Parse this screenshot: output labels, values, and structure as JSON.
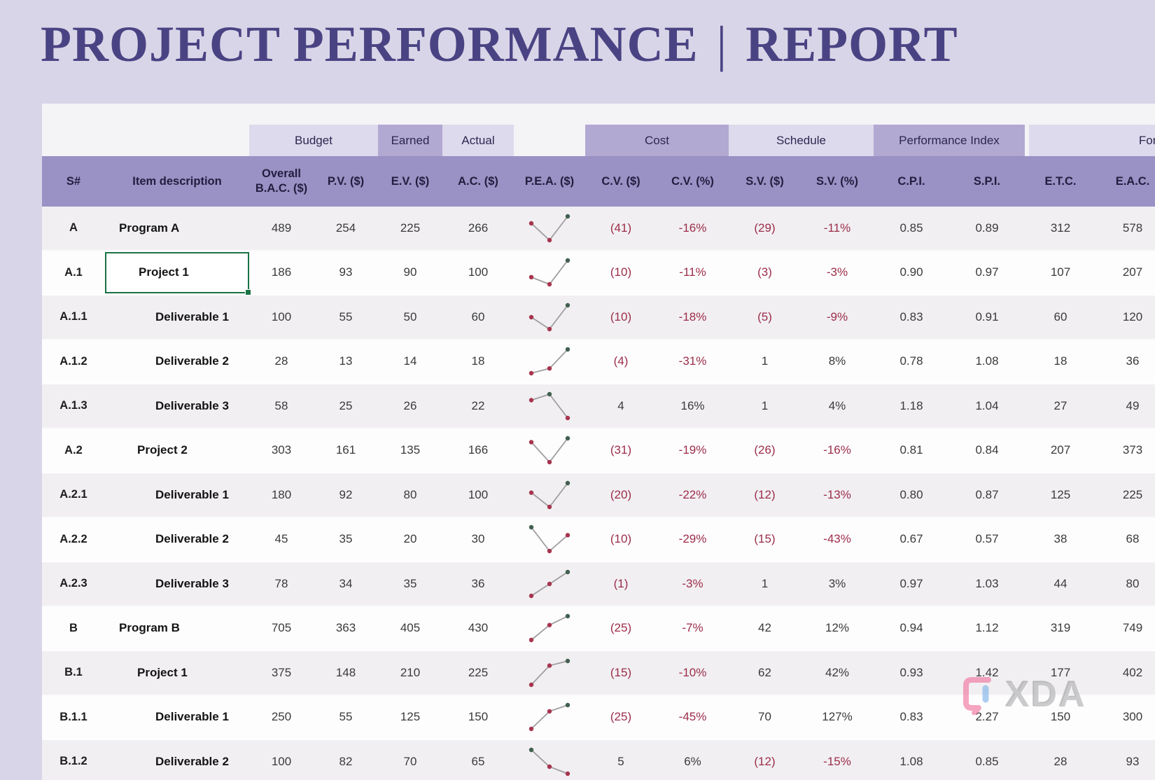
{
  "title": {
    "left": "PROJECT PERFORMANCE",
    "separator": "|",
    "right": "REPORT"
  },
  "colors": {
    "page_background": "#d9d5e8",
    "title_text": "#4a4383",
    "header_band": "#9a91c4",
    "group_tab_light": "#dedaed",
    "group_tab_dark": "#b2a9d2",
    "row_stripe_gray": "#f1eff2",
    "row_stripe_white": "#fdfdfe",
    "negative_value": "#9c2d49",
    "selection_border": "#1b7245",
    "spark_line": "#a09da0",
    "spark_marker": "#a7344e",
    "spark_marker_high": "#41604f",
    "watermark_pink": "#ef6b96",
    "watermark_blue": "#7fb3e8"
  },
  "table": {
    "groups": {
      "budget": "Budget",
      "earned": "Earned",
      "actual": "Actual",
      "cost": "Cost",
      "schedule": "Schedule",
      "performance_index": "Performance Index",
      "forecast": "Forecast"
    },
    "columns": [
      "S#",
      "Item description",
      "Overall B.A.C. ($)",
      "P.V. ($)",
      "E.V. ($)",
      "A.C. ($)",
      "P.E.A. ($)",
      "C.V. ($)",
      "C.V. (%)",
      "S.V. ($)",
      "S.V. (%)",
      "C.P.I.",
      "S.P.I.",
      "E.T.C.",
      "E.A.C."
    ],
    "rows": [
      {
        "sn": "A",
        "item": "Program A",
        "level": 0,
        "bac": "489",
        "pv": "254",
        "ev": "225",
        "ac": "266",
        "cv_d": "(41)",
        "cv_p": "-16%",
        "sv_d": "(29)",
        "sv_p": "-11%",
        "cpi": "0.85",
        "spi": "0.89",
        "etc": "312",
        "eac": "578"
      },
      {
        "sn": "A.1",
        "item": "Project 1",
        "level": 1,
        "selected": true,
        "bac": "186",
        "pv": "93",
        "ev": "90",
        "ac": "100",
        "cv_d": "(10)",
        "cv_p": "-11%",
        "sv_d": "(3)",
        "sv_p": "-3%",
        "cpi": "0.90",
        "spi": "0.97",
        "etc": "107",
        "eac": "207"
      },
      {
        "sn": "A.1.1",
        "item": "Deliverable 1",
        "level": 2,
        "bac": "100",
        "pv": "55",
        "ev": "50",
        "ac": "60",
        "cv_d": "(10)",
        "cv_p": "-18%",
        "sv_d": "(5)",
        "sv_p": "-9%",
        "cpi": "0.83",
        "spi": "0.91",
        "etc": "60",
        "eac": "120"
      },
      {
        "sn": "A.1.2",
        "item": "Deliverable 2",
        "level": 2,
        "bac": "28",
        "pv": "13",
        "ev": "14",
        "ac": "18",
        "cv_d": "(4)",
        "cv_p": "-31%",
        "sv_d": "1",
        "sv_p": "8%",
        "cpi": "0.78",
        "spi": "1.08",
        "etc": "18",
        "eac": "36"
      },
      {
        "sn": "A.1.3",
        "item": "Deliverable 3",
        "level": 2,
        "bac": "58",
        "pv": "25",
        "ev": "26",
        "ac": "22",
        "cv_d": "4",
        "cv_p": "16%",
        "sv_d": "1",
        "sv_p": "4%",
        "cpi": "1.18",
        "spi": "1.04",
        "etc": "27",
        "eac": "49"
      },
      {
        "sn": "A.2",
        "item": "Project 2",
        "level": 1,
        "bac": "303",
        "pv": "161",
        "ev": "135",
        "ac": "166",
        "cv_d": "(31)",
        "cv_p": "-19%",
        "sv_d": "(26)",
        "sv_p": "-16%",
        "cpi": "0.81",
        "spi": "0.84",
        "etc": "207",
        "eac": "373"
      },
      {
        "sn": "A.2.1",
        "item": "Deliverable 1",
        "level": 2,
        "bac": "180",
        "pv": "92",
        "ev": "80",
        "ac": "100",
        "cv_d": "(20)",
        "cv_p": "-22%",
        "sv_d": "(12)",
        "sv_p": "-13%",
        "cpi": "0.80",
        "spi": "0.87",
        "etc": "125",
        "eac": "225"
      },
      {
        "sn": "A.2.2",
        "item": "Deliverable 2",
        "level": 2,
        "bac": "45",
        "pv": "35",
        "ev": "20",
        "ac": "30",
        "cv_d": "(10)",
        "cv_p": "-29%",
        "sv_d": "(15)",
        "sv_p": "-43%",
        "cpi": "0.67",
        "spi": "0.57",
        "etc": "38",
        "eac": "68"
      },
      {
        "sn": "A.2.3",
        "item": "Deliverable 3",
        "level": 2,
        "bac": "78",
        "pv": "34",
        "ev": "35",
        "ac": "36",
        "cv_d": "(1)",
        "cv_p": "-3%",
        "sv_d": "1",
        "sv_p": "3%",
        "cpi": "0.97",
        "spi": "1.03",
        "etc": "44",
        "eac": "80"
      },
      {
        "sn": "B",
        "item": "Program B",
        "level": 0,
        "bac": "705",
        "pv": "363",
        "ev": "405",
        "ac": "430",
        "cv_d": "(25)",
        "cv_p": "-7%",
        "sv_d": "42",
        "sv_p": "12%",
        "cpi": "0.94",
        "spi": "1.12",
        "etc": "319",
        "eac": "749"
      },
      {
        "sn": "B.1",
        "item": "Project 1",
        "level": 1,
        "bac": "375",
        "pv": "148",
        "ev": "210",
        "ac": "225",
        "cv_d": "(15)",
        "cv_p": "-10%",
        "sv_d": "62",
        "sv_p": "42%",
        "cpi": "0.93",
        "spi": "1.42",
        "etc": "177",
        "eac": "402"
      },
      {
        "sn": "B.1.1",
        "item": "Deliverable 1",
        "level": 2,
        "bac": "250",
        "pv": "55",
        "ev": "125",
        "ac": "150",
        "cv_d": "(25)",
        "cv_p": "-45%",
        "sv_d": "70",
        "sv_p": "127%",
        "cpi": "0.83",
        "spi": "2.27",
        "etc": "150",
        "eac": "300"
      },
      {
        "sn": "B.1.2",
        "item": "Deliverable 2",
        "level": 2,
        "bac": "100",
        "pv": "82",
        "ev": "70",
        "ac": "65",
        "cv_d": "5",
        "cv_p": "6%",
        "sv_d": "(12)",
        "sv_p": "-15%",
        "cpi": "1.08",
        "spi": "0.85",
        "etc": "28",
        "eac": "93"
      }
    ]
  },
  "watermark": {
    "text": "XDA"
  }
}
